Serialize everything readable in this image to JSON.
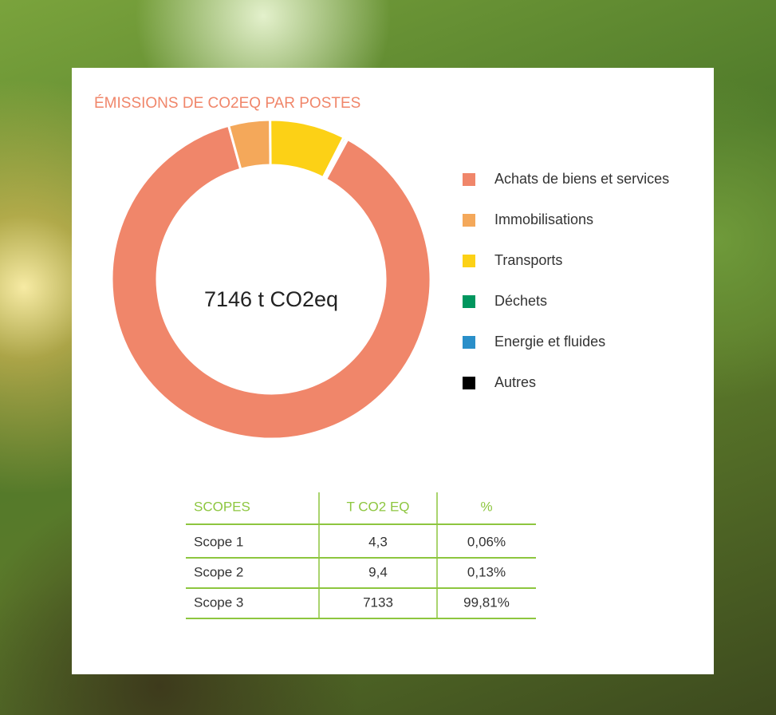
{
  "chart_data": {
    "type": "donut",
    "title": "ÉMISSIONS DE CO2EQ PAR POSTES",
    "center_label": "7146 t CO2eq",
    "categories": [
      "Achats de biens et services",
      "Immobilisations",
      "Transports",
      "Déchets",
      "Energie et fluides",
      "Autres"
    ],
    "values": [
      6270,
      300,
      545,
      18,
      13,
      0
    ],
    "colors": [
      "#f0866a",
      "#f4a85a",
      "#fcd116",
      "#00965e",
      "#2a8fc9",
      "#000000"
    ]
  },
  "table": {
    "header": [
      "SCOPES",
      "T CO2 EQ",
      "%"
    ],
    "rows": [
      [
        "Scope 1",
        "4,3",
        "0,06%"
      ],
      [
        "Scope 2",
        "9,4",
        "0,13%"
      ],
      [
        "Scope 3",
        "7133",
        "99,81%"
      ]
    ]
  }
}
